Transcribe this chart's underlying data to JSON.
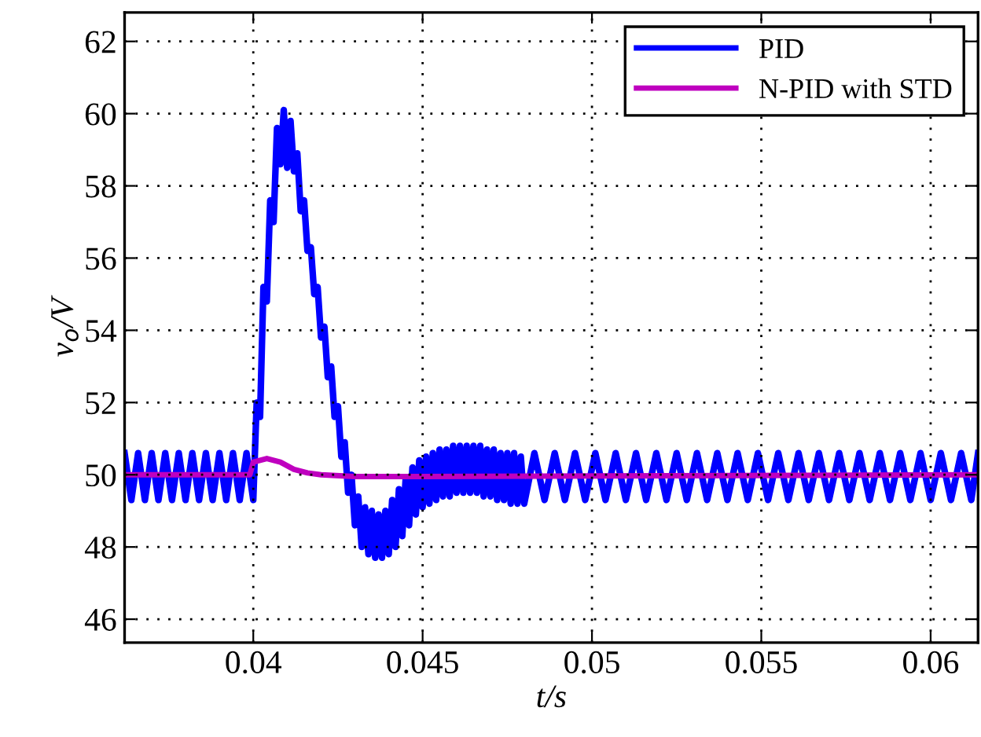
{
  "chart_data": {
    "type": "line",
    "xlabel": "t/s",
    "ylabel": "v$_{o}$/V",
    "xlim": [
      0.0362,
      0.0614
    ],
    "ylim": [
      45.35,
      62.8
    ],
    "xticks": [
      0.04,
      0.045,
      0.05,
      0.055,
      0.06
    ],
    "yticks": [
      46,
      48,
      50,
      52,
      54,
      56,
      58,
      60,
      62
    ],
    "grid": true,
    "legend": "top right",
    "line_style": "solid",
    "marker": "none",
    "series": [
      {
        "name": "PID",
        "color": "#0000ff",
        "x": [
          0.0362,
          0.0364,
          0.0366,
          0.0368,
          0.037,
          0.0372,
          0.0374,
          0.0376,
          0.0378,
          0.038,
          0.0382,
          0.0384,
          0.0386,
          0.0388,
          0.039,
          0.0392,
          0.0394,
          0.0396,
          0.0398,
          0.04,
          0.0401,
          0.0402,
          0.0403,
          0.0404,
          0.0405,
          0.0406,
          0.0407,
          0.0408,
          0.0409,
          0.041,
          0.0411,
          0.0412,
          0.0413,
          0.0414,
          0.0415,
          0.0416,
          0.0417,
          0.0418,
          0.0419,
          0.042,
          0.0421,
          0.0422,
          0.0423,
          0.0424,
          0.0425,
          0.0426,
          0.0427,
          0.0428,
          0.0429,
          0.043,
          0.0431,
          0.0432,
          0.0433,
          0.0434,
          0.0435,
          0.0436,
          0.0437,
          0.0438,
          0.0439,
          0.044,
          0.0441,
          0.0442,
          0.0443,
          0.0444,
          0.0445,
          0.0446,
          0.0447,
          0.0448,
          0.0449,
          0.045,
          0.0451,
          0.0452,
          0.0453,
          0.0454,
          0.0455,
          0.0456,
          0.0457,
          0.0458,
          0.0459,
          0.046,
          0.0461,
          0.0462,
          0.0463,
          0.0464,
          0.0465,
          0.0466,
          0.0467,
          0.0468,
          0.0469,
          0.047,
          0.0471,
          0.0472,
          0.0473,
          0.0474,
          0.0475,
          0.0476,
          0.0477,
          0.0478,
          0.0479,
          0.048,
          0.0483,
          0.0486,
          0.0489,
          0.0492,
          0.0495,
          0.0498,
          0.0501,
          0.0504,
          0.0507,
          0.051,
          0.0513,
          0.0516,
          0.0519,
          0.0522,
          0.0525,
          0.0528,
          0.0531,
          0.0534,
          0.0537,
          0.054,
          0.0543,
          0.0546,
          0.0549,
          0.0552,
          0.0555,
          0.0558,
          0.0561,
          0.0564,
          0.0567,
          0.057,
          0.0573,
          0.0576,
          0.0579,
          0.0582,
          0.0585,
          0.0588,
          0.0591,
          0.0594,
          0.0597,
          0.06,
          0.0603,
          0.0606,
          0.0609,
          0.0612,
          0.0614
        ],
        "values": [
          50.6,
          49.3,
          50.6,
          49.3,
          50.6,
          49.3,
          50.6,
          49.3,
          50.6,
          49.3,
          50.6,
          49.3,
          50.6,
          49.3,
          50.6,
          49.3,
          50.6,
          49.3,
          50.6,
          49.3,
          52.0,
          51.6,
          55.2,
          54.8,
          57.6,
          57.0,
          59.6,
          58.6,
          60.1,
          58.5,
          59.8,
          58.4,
          58.9,
          57.3,
          57.6,
          56.2,
          56.3,
          55.0,
          55.2,
          53.8,
          54.1,
          52.7,
          53.0,
          51.6,
          51.9,
          50.5,
          50.9,
          49.5,
          50.0,
          48.6,
          49.4,
          48.0,
          49.1,
          47.8,
          49.0,
          47.7,
          48.9,
          47.7,
          49.0,
          47.8,
          49.3,
          48.0,
          49.6,
          48.3,
          49.9,
          48.6,
          50.2,
          48.9,
          50.4,
          49.1,
          50.5,
          49.2,
          50.6,
          49.3,
          50.7,
          49.4,
          50.7,
          49.4,
          50.8,
          49.5,
          50.8,
          49.5,
          50.8,
          49.5,
          50.8,
          49.5,
          50.8,
          49.4,
          50.7,
          49.4,
          50.7,
          49.3,
          50.6,
          49.3,
          50.6,
          49.2,
          50.6,
          49.2,
          50.5,
          49.2,
          50.6,
          49.3,
          50.6,
          49.3,
          50.6,
          49.3,
          50.6,
          49.3,
          50.6,
          49.3,
          50.6,
          49.3,
          50.6,
          49.3,
          50.6,
          49.3,
          50.6,
          49.3,
          50.6,
          49.3,
          50.6,
          49.3,
          50.6,
          49.3,
          50.6,
          49.3,
          50.6,
          49.3,
          50.6,
          49.3,
          50.6,
          49.3,
          50.6,
          49.3,
          50.6,
          49.3,
          50.6,
          49.3,
          50.6,
          49.3,
          50.6,
          49.3,
          50.6,
          49.3,
          50.6
        ]
      },
      {
        "name": "N-PID with STD",
        "color": "#bf00bf",
        "x": [
          0.0362,
          0.0399,
          0.04,
          0.0404,
          0.0408,
          0.0412,
          0.0416,
          0.042,
          0.043,
          0.045,
          0.0614
        ],
        "values": [
          50.0,
          50.0,
          50.35,
          50.45,
          50.35,
          50.15,
          50.05,
          50.0,
          49.95,
          49.95,
          50.0
        ]
      }
    ]
  }
}
